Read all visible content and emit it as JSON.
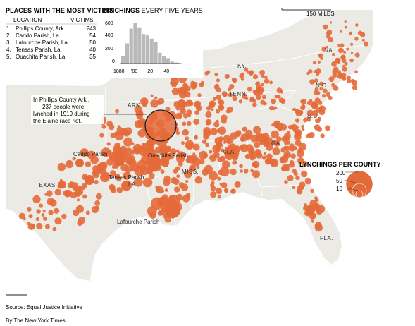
{
  "top_places": {
    "title": "PLACES WITH THE MOST VICTIMS",
    "col_location": "LOCATION",
    "col_victims": "VICTIMS",
    "rows": [
      {
        "rank": "1.",
        "place": "Phillips County, Ark.",
        "victims": "243"
      },
      {
        "rank": "2.",
        "place": "Caddo Parish, La.",
        "victims": "54"
      },
      {
        "rank": "3.",
        "place": "Lafourche Parish, La.",
        "victims": "50"
      },
      {
        "rank": "4.",
        "place": "Tensas Parish, La.",
        "victims": "40"
      },
      {
        "rank": "5.",
        "place": "Ouachita Parish, La.",
        "victims": "35"
      }
    ]
  },
  "histogram": {
    "title_bold": "LYNCHINGS",
    "title_rest": " EVERY FIVE YEARS",
    "y_ticks": [
      "600",
      "400",
      "200",
      "0"
    ],
    "x_ticks": [
      "1880",
      "'00",
      "'20",
      "'40"
    ]
  },
  "chart_data": {
    "type": "bar",
    "title": "LYNCHINGS EVERY FIVE YEARS",
    "x": [
      1880,
      1885,
      1890,
      1895,
      1900,
      1905,
      1910,
      1915,
      1920,
      1925,
      1930,
      1935,
      1940,
      1945,
      1950
    ],
    "values": [
      110,
      300,
      520,
      610,
      540,
      440,
      420,
      370,
      320,
      160,
      110,
      80,
      30,
      15,
      8
    ],
    "ylim": [
      0,
      650
    ]
  },
  "scale_bar": {
    "label": "150 MILES"
  },
  "state_labels": [
    "ARK.",
    "TENN.",
    "KY.",
    "VA.",
    "N.C.",
    "S.C.",
    "GA.",
    "ALA.",
    "MISS.",
    "LA.",
    "TEXAS",
    "FLA."
  ],
  "parish_labels": [
    "Caddo Parish",
    "Ouachita Parish",
    "Tensas Parish",
    "Lafourche Parish"
  ],
  "annotation": {
    "lines": [
      "In Phillips County Ark.,",
      "237 people were",
      "lynched in 1919 during",
      "the Elaine race riot."
    ]
  },
  "legend": {
    "title": "LYNCHINGS PER COUNTY",
    "values": [
      200,
      50,
      10
    ],
    "labels": [
      "200",
      "50",
      "10"
    ]
  },
  "colors": {
    "dot": "#e56a3a",
    "land": "#ebeae4",
    "water": "#ffffff",
    "border": "#ffffff",
    "text": "#222222"
  },
  "footer": {
    "source": "Source: Equal Justice Initiative",
    "credit": "By The New York Times"
  }
}
